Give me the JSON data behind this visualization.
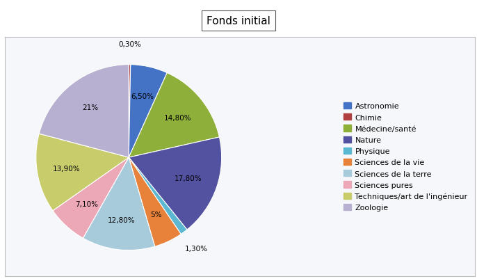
{
  "title": "Fonds initial",
  "legend_labels": [
    "Astronomie",
    "Chimie",
    "Médecine/santé",
    "Nature",
    "Physique",
    "Sciences de la vie",
    "Sciences de la terre",
    "Sciences pures",
    "Techniques/art de l'ingénieur",
    "Zoologie"
  ],
  "slice_order": [
    "Chimie",
    "Astronomie",
    "Médecine/santé",
    "Nature",
    "Physique",
    "Sciences de la vie",
    "Sciences de la terre",
    "Sciences pures",
    "Techniques/art de l'ingénieur",
    "Zoologie"
  ],
  "values": [
    0.3,
    6.5,
    14.8,
    17.8,
    1.3,
    5.0,
    12.8,
    7.1,
    13.9,
    21.0
  ],
  "pct_labels": [
    "0,30%",
    "6,50%",
    "14,80%",
    "17,80%",
    "1,30%",
    "5%",
    "12,80%",
    "7,10%",
    "13,90%",
    "21%"
  ],
  "colors": [
    "#B04040",
    "#4472C4",
    "#8EAF3A",
    "#5252A0",
    "#5BB8D0",
    "#E8813A",
    "#A8CBDC",
    "#EDA8B8",
    "#C8CC6A",
    "#B8B0D0"
  ],
  "legend_colors": [
    "#4472C4",
    "#B04040",
    "#8EAF3A",
    "#5252A0",
    "#5BB8D0",
    "#E8813A",
    "#A8CBDC",
    "#EDA8B8",
    "#C8CC6A",
    "#B8B0D0"
  ],
  "background_color": "#FFFFFF",
  "box_bg": "#F5F7FA",
  "box_edge": "#BBBBBB"
}
